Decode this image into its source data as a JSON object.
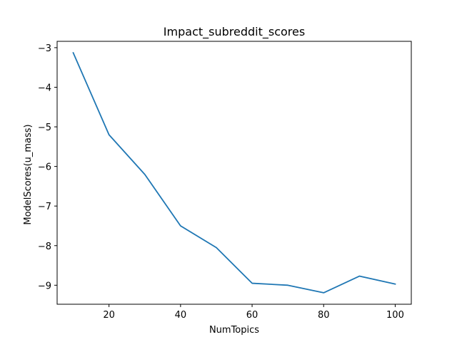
{
  "chart_data": {
    "type": "line",
    "title": "Impact_subreddit_scores",
    "xlabel": "NumTopics",
    "ylabel": "ModelScores(u_mass)",
    "x": [
      10,
      20,
      30,
      40,
      50,
      60,
      70,
      80,
      90,
      100
    ],
    "series": [
      {
        "values": [
          -3.13,
          -5.2,
          -6.2,
          -7.5,
          -8.05,
          -8.95,
          -9.0,
          -9.19,
          -8.77,
          -8.97
        ],
        "color": "#1f77b4"
      }
    ],
    "xlim": [
      5.5,
      104.5
    ],
    "ylim": [
      -9.48,
      -2.84
    ],
    "xticks": [
      20,
      40,
      60,
      80,
      100
    ],
    "yticks": [
      -3,
      -4,
      -5,
      -6,
      -7,
      -8,
      -9
    ],
    "xtick_labels": [
      "20",
      "40",
      "60",
      "80",
      "100"
    ],
    "ytick_labels": [
      "−3",
      "−4",
      "−5",
      "−6",
      "−7",
      "−8",
      "−9"
    ],
    "grid": false,
    "legend": "none"
  }
}
